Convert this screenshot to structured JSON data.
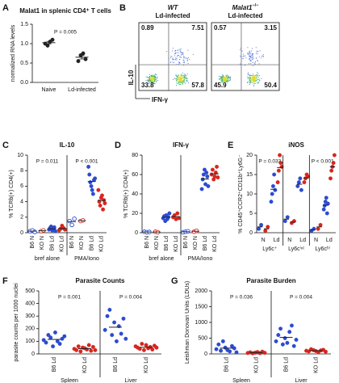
{
  "chart_data": [
    {
      "type": "dotplot",
      "label": "A",
      "title": "Malat1 in splenic CD4⁺ T cells",
      "ylabel": "normalized RNA levels",
      "ylim": [
        0,
        1.5
      ],
      "yticks": [
        {
          "value": 0,
          "label": "0.0"
        },
        {
          "value": 0.5,
          "label": "0.5"
        },
        {
          "value": 1,
          "label": "1.0"
        },
        {
          "value": 1.5,
          "label": "1.5"
        }
      ],
      "rotated_labels": false,
      "error_bars": true,
      "groups": [
        {
          "p": "P = 0.005",
          "categories": [
            {
              "label": "Naive",
              "sets": [
                {
                  "color": "#222222",
                  "open": false,
                  "values": [
                    1.0,
                    0.95,
                    1.05,
                    1.1
                  ]
                }
              ]
            },
            {
              "label": "Ld-infected",
              "sets": [
                {
                  "color": "#222222",
                  "open": false,
                  "values": [
                    0.55,
                    0.7,
                    0.75,
                    0.6
                  ]
                }
              ]
            }
          ]
        }
      ]
    },
    {
      "type": "flow",
      "label": "B",
      "ylabel": "IL-10",
      "xlabel": "IFN-γ",
      "panels": [
        {
          "title": "WT",
          "subtitle": "Ld-infected",
          "quadrants": [
            0.89,
            7.51,
            33.8,
            57.8
          ]
        },
        {
          "title": "Malat1",
          "title_sup": "−/−",
          "subtitle": "Ld-infected",
          "quadrants": [
            0.57,
            3.15,
            45.9,
            50.4
          ]
        }
      ]
    },
    {
      "type": "dotplot",
      "label": "C",
      "title": "IL-10",
      "ylabel": "% TCRb(+) CD4(+)",
      "ylim": [
        0,
        10
      ],
      "yticks": [
        0,
        2,
        4,
        6,
        8,
        10
      ],
      "rotated_labels": true,
      "error_bars": false,
      "groups": [
        {
          "name": "bref alone",
          "p": "P = 0.011",
          "categories": [
            {
              "label": "B6 N",
              "sets": [
                {
                  "color": "#2b4bd0",
                  "open": true,
                  "values": [
                    0.2,
                    0.3,
                    0.1
                  ]
                }
              ]
            },
            {
              "label": "KO N",
              "sets": [
                {
                  "color": "#d7261e",
                  "open": true,
                  "values": [
                    0.2,
                    0.3
                  ]
                }
              ]
            },
            {
              "label": "B6 Ld",
              "sets": [
                {
                  "color": "#2b4bd0",
                  "open": false,
                  "values": [
                    0.4,
                    0.6,
                    0.8,
                    0.3,
                    0.5,
                    0.7,
                    0.2
                  ]
                }
              ]
            },
            {
              "label": "KO Ld",
              "sets": [
                {
                  "color": "#d7261e",
                  "open": false,
                  "values": [
                    0.3,
                    0.5,
                    0.9,
                    0.6,
                    0.4
                  ]
                }
              ]
            }
          ]
        },
        {
          "name": "PMA/Iono",
          "p": "P < 0.001",
          "categories": [
            {
              "label": "B6 N",
              "sets": [
                {
                  "color": "#2b4bd0",
                  "open": true,
                  "values": [
                    1.5,
                    1.0,
                    1.8
                  ]
                }
              ]
            },
            {
              "label": "KO N",
              "sets": [
                {
                  "color": "#d7261e",
                  "open": true,
                  "values": [
                    1.5,
                    1.6
                  ]
                }
              ]
            },
            {
              "label": "B6 Ld",
              "sets": [
                {
                  "color": "#2b4bd0",
                  "open": false,
                  "values": [
                    8.5,
                    7.5,
                    6.5,
                    6,
                    5.5,
                    5,
                    6.8,
                    7
                  ]
                }
              ]
            },
            {
              "label": "KO Ld",
              "sets": [
                {
                  "color": "#d7261e",
                  "open": false,
                  "values": [
                    5.5,
                    4,
                    3.5,
                    4.5,
                    4.8,
                    3,
                    4.2,
                    3.8
                  ]
                }
              ]
            }
          ]
        }
      ]
    },
    {
      "type": "dotplot",
      "label": "D",
      "title": "IFN-γ",
      "ylabel": "% TCRb(+) CD4(+)",
      "ylim": [
        0,
        80
      ],
      "yticks": [
        0,
        20,
        40,
        60,
        80
      ],
      "rotated_labels": true,
      "error_bars": false,
      "groups": [
        {
          "name": "bref alone",
          "categories": [
            {
              "label": "B6 N",
              "sets": [
                {
                  "color": "#2b4bd0",
                  "open": true,
                  "values": [
                    1,
                    0.5,
                    0.8
                  ]
                }
              ]
            },
            {
              "label": "KO N",
              "sets": [
                {
                  "color": "#d7261e",
                  "open": true,
                  "values": [
                    1,
                    0.5
                  ]
                }
              ]
            },
            {
              "label": "B6 Ld",
              "sets": [
                {
                  "color": "#2b4bd0",
                  "open": false,
                  "values": [
                    15,
                    17,
                    12,
                    18,
                    14,
                    16,
                    20
                  ]
                }
              ]
            },
            {
              "label": "KO Ld",
              "sets": [
                {
                  "color": "#d7261e",
                  "open": false,
                  "values": [
                    16,
                    18,
                    14,
                    20,
                    15
                  ]
                }
              ]
            }
          ]
        },
        {
          "name": "PMA/Iono",
          "categories": [
            {
              "label": "B6 N",
              "sets": [
                {
                  "color": "#2b4bd0",
                  "open": true,
                  "values": [
                    0.5,
                    1,
                    1.5
                  ]
                }
              ]
            },
            {
              "label": "KO N",
              "sets": [
                {
                  "color": "#d7261e",
                  "open": true,
                  "values": [
                    1,
                    2
                  ]
                }
              ]
            },
            {
              "label": "B6 Ld",
              "sets": [
                {
                  "color": "#2b4bd0",
                  "open": false,
                  "values": [
                    45,
                    55,
                    60,
                    65,
                    50,
                    62,
                    58,
                    48
                  ]
                }
              ]
            },
            {
              "label": "KO Ld",
              "sets": [
                {
                  "color": "#d7261e",
                  "open": false,
                  "values": [
                    60,
                    65,
                    55,
                    58,
                    62,
                    68,
                    57
                  ]
                }
              ]
            }
          ]
        }
      ]
    },
    {
      "type": "dotplot",
      "label": "E",
      "title": "iNOS",
      "ylabel": "% CD45⁺CCR2⁺CD11b⁺Ly6G⁻",
      "ylim": [
        0,
        20
      ],
      "yticks": [
        0,
        5,
        10,
        15,
        20
      ],
      "rotated_labels": false,
      "error_bars": false,
      "groups": [
        {
          "name": "Ly6c⁺",
          "p": "P = 0.033",
          "categories": [
            {
              "label": "N",
              "sets": [
                {
                  "color": "#2b4bd0",
                  "open": false,
                  "values": [
                    1,
                    2
                  ]
                },
                {
                  "color": "#d7261e",
                  "open": false,
                  "values": [
                    0.5,
                    1.5
                  ]
                }
              ]
            },
            {
              "label": "Ld",
              "sets": [
                {
                  "color": "#2b4bd0",
                  "open": false,
                  "values": [
                    8,
                    10,
                    12,
                    15,
                    11
                  ]
                },
                {
                  "color": "#d7261e",
                  "open": false,
                  "values": [
                    13,
                    16,
                    20,
                    18,
                    17
                  ]
                }
              ]
            }
          ]
        },
        {
          "name": "Ly6cⁱⁿᵗ",
          "categories": [
            {
              "label": "N",
              "sets": [
                {
                  "color": "#2b4bd0",
                  "open": false,
                  "values": [
                    3,
                    4
                  ]
                },
                {
                  "color": "#d7261e",
                  "open": false,
                  "values": [
                    2.5,
                    3
                  ]
                }
              ]
            },
            {
              "label": "Ld",
              "sets": [
                {
                  "color": "#2b4bd0",
                  "open": false,
                  "values": [
                    12,
                    13,
                    14,
                    11
                  ]
                },
                {
                  "color": "#d7261e",
                  "open": false,
                  "values": [
                    13,
                    14,
                    15,
                    14.5
                  ]
                }
              ]
            }
          ]
        },
        {
          "name": "Ly6cʰⁱ",
          "p": "P < 0.001",
          "categories": [
            {
              "label": "N",
              "sets": [
                {
                  "color": "#2b4bd0",
                  "open": false,
                  "values": [
                    0.5,
                    1
                  ]
                },
                {
                  "color": "#d7261e",
                  "open": false,
                  "values": [
                    1,
                    2
                  ]
                }
              ]
            },
            {
              "label": "Ld",
              "sets": [
                {
                  "color": "#2b4bd0",
                  "open": false,
                  "values": [
                    6,
                    7,
                    8,
                    9,
                    5,
                    7.5
                  ]
                },
                {
                  "color": "#d7261e",
                  "open": false,
                  "values": [
                    14,
                    16,
                    17,
                    18,
                    20
                  ]
                }
              ]
            }
          ]
        }
      ]
    },
    {
      "type": "dotplot",
      "label": "F",
      "title": "Parasite Counts",
      "ylabel": "parasite counts per 1000 nuclei",
      "ylim": [
        0,
        500
      ],
      "yticks": [
        0,
        100,
        200,
        300,
        400,
        500
      ],
      "rotated_labels": true,
      "error_bars": false,
      "groups": [
        {
          "name": "Spleen",
          "p": "P = 0.001",
          "categories": [
            {
              "label": "B6 Ld",
              "sets": [
                {
                  "color": "#2b4bd0",
                  "open": false,
                  "values": [
                    110,
                    90,
                    150,
                    130,
                    60,
                    170,
                    100,
                    80,
                    120,
                    140
                  ]
                }
              ]
            },
            {
              "label": "KO Ld",
              "sets": [
                {
                  "color": "#d7261e",
                  "open": false,
                  "values": [
                    40,
                    30,
                    60,
                    20,
                    50,
                    45,
                    35,
                    70,
                    25,
                    55,
                    30
                  ]
                }
              ]
            }
          ]
        },
        {
          "name": "Liver",
          "p": "P = 0.004",
          "categories": [
            {
              "label": "B6 Ld",
              "sets": [
                {
                  "color": "#2b4bd0",
                  "open": false,
                  "values": [
                    190,
                    300,
                    350,
                    150,
                    250,
                    100,
                    220,
                    160,
                    280,
                    120
                  ]
                }
              ]
            },
            {
              "label": "KO Ld",
              "sets": [
                {
                  "color": "#d7261e",
                  "open": false,
                  "values": [
                    60,
                    50,
                    40,
                    80,
                    30,
                    70,
                    45,
                    55,
                    35,
                    65,
                    50
                  ]
                }
              ]
            }
          ]
        }
      ]
    },
    {
      "type": "dotplot",
      "label": "G",
      "title": "Parasite Burden",
      "ylabel": "Leishman Donovan Units (LDUs)",
      "ylim": [
        0,
        2000
      ],
      "yticks": [
        0,
        500,
        1000,
        1500,
        2000
      ],
      "rotated_labels": true,
      "error_bars": false,
      "groups": [
        {
          "name": "Spleen",
          "p": "P = 0.036",
          "categories": [
            {
              "label": "B6 Ld",
              "sets": [
                {
                  "color": "#2b4bd0",
                  "open": false,
                  "values": [
                    150,
                    300,
                    100,
                    400,
                    200,
                    120,
                    80,
                    250,
                    180,
                    50
                  ]
                }
              ]
            },
            {
              "label": "KO Ld",
              "sets": [
                {
                  "color": "#d7261e",
                  "open": false,
                  "values": [
                    30,
                    50,
                    20,
                    40,
                    60,
                    25,
                    70,
                    35
                  ]
                }
              ]
            }
          ]
        },
        {
          "name": "Liver",
          "p": "P = 0.004",
          "categories": [
            {
              "label": "B6 Ld",
              "sets": [
                {
                  "color": "#2b4bd0",
                  "open": false,
                  "values": [
                    400,
                    600,
                    800,
                    300,
                    500,
                    350,
                    700,
                    900,
                    250,
                    450
                  ]
                }
              ]
            },
            {
              "label": "KO Ld",
              "sets": [
                {
                  "color": "#d7261e",
                  "open": false,
                  "values": [
                    100,
                    80,
                    150,
                    120,
                    90,
                    60,
                    110,
                    130,
                    70
                  ]
                }
              ]
            }
          ]
        }
      ]
    }
  ]
}
